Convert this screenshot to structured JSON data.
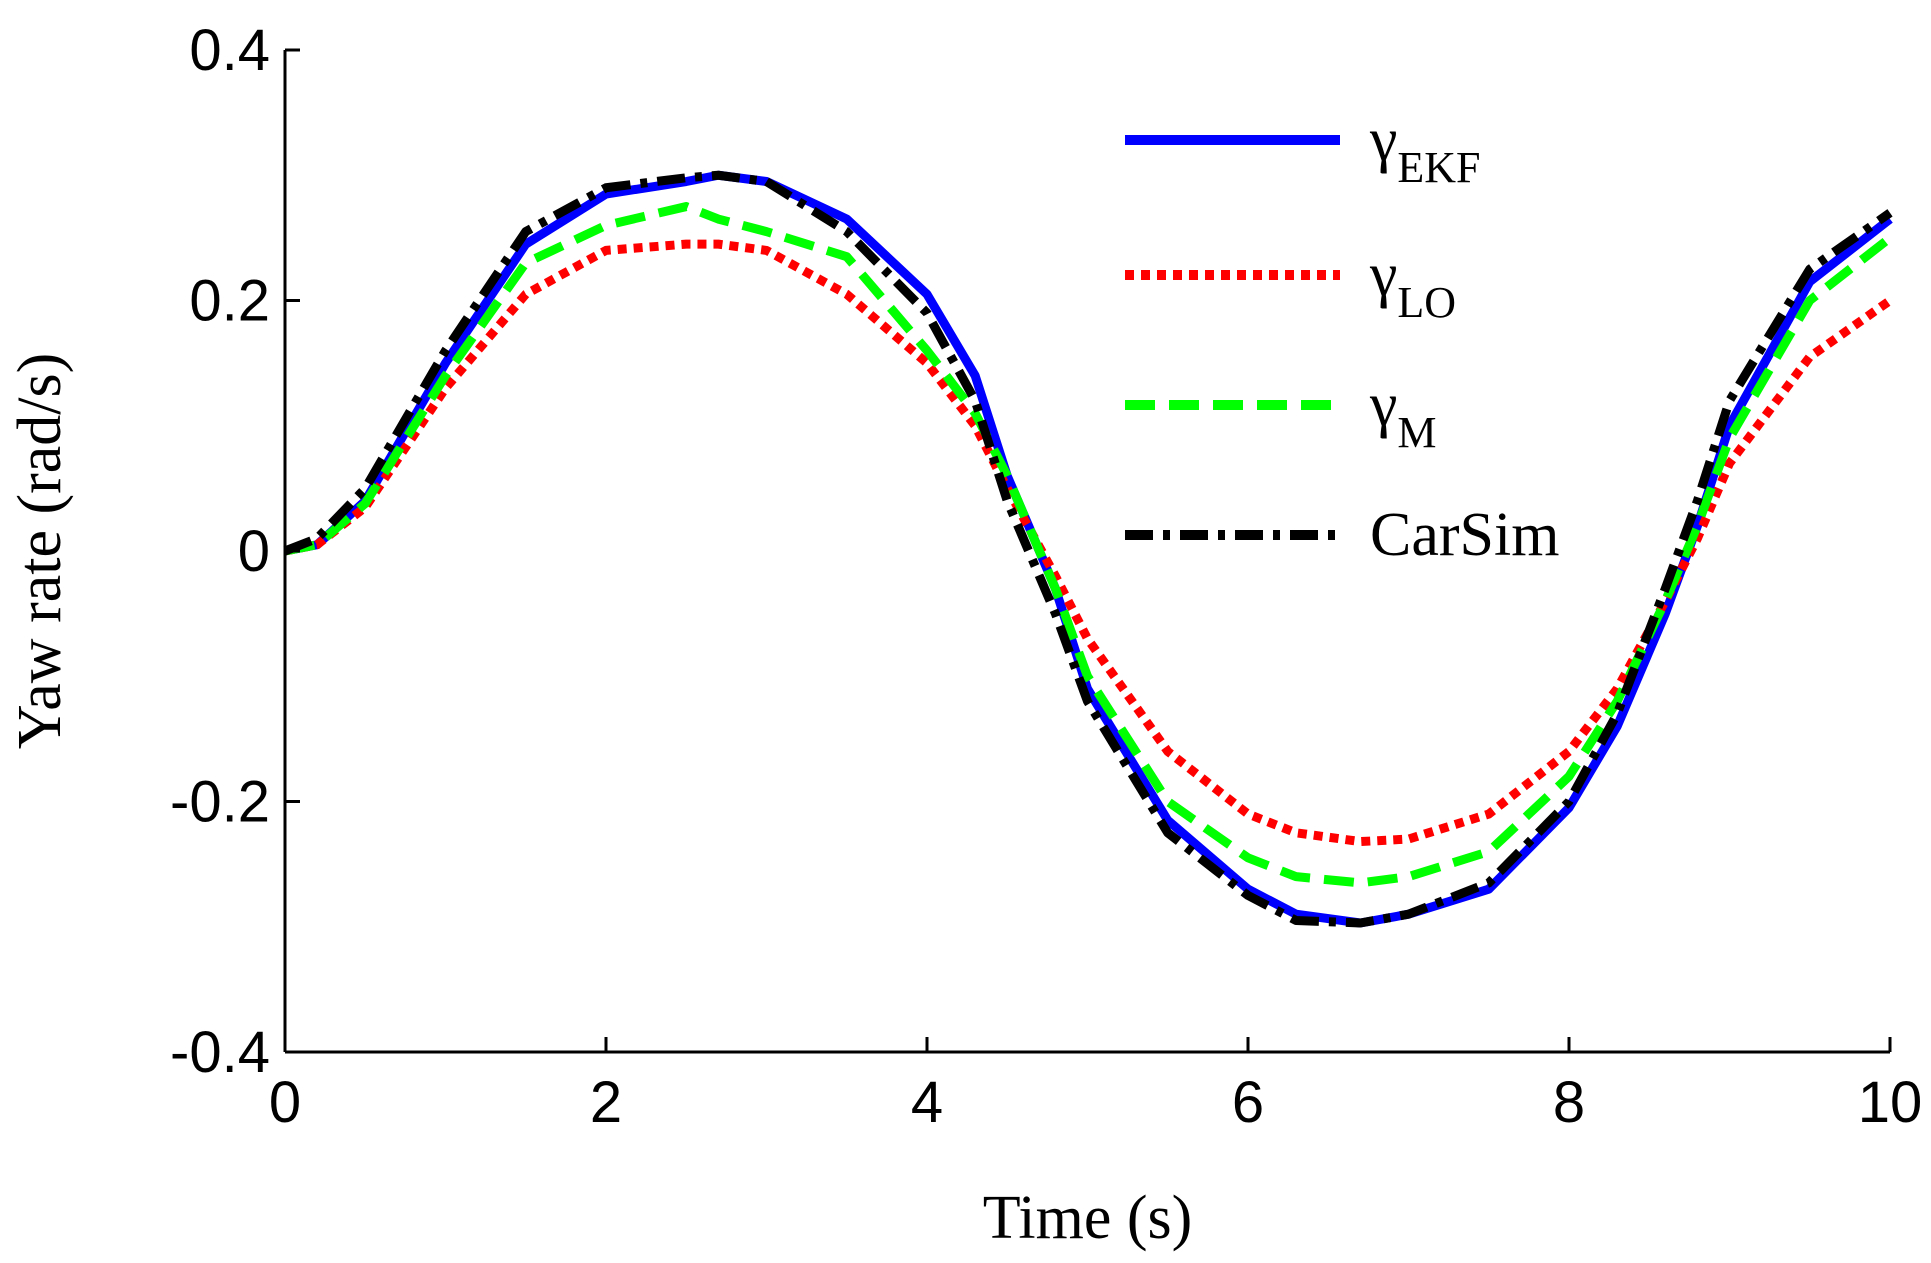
{
  "chart_data": {
    "type": "line",
    "title": "",
    "xlabel": "Time (s)",
    "ylabel": "Yaw rate (rad/s)",
    "xlim": [
      0,
      10
    ],
    "ylim": [
      -0.4,
      0.4
    ],
    "xticks": [
      0,
      2,
      4,
      6,
      8,
      10
    ],
    "xtick_labels": [
      "0",
      "2",
      "4",
      "6",
      "8",
      "10"
    ],
    "yticks": [
      -0.4,
      -0.2,
      0,
      0.2,
      0.4
    ],
    "ytick_labels": [
      "-0.4",
      "-0.2",
      "0",
      "0.2",
      "0.4"
    ],
    "grid": false,
    "legend_position": "top-right",
    "x": [
      0,
      0.2,
      0.5,
      1.0,
      1.5,
      2.0,
      2.5,
      2.7,
      3.0,
      3.5,
      4.0,
      4.3,
      4.5,
      4.8,
      5.0,
      5.5,
      6.0,
      6.3,
      6.7,
      7.0,
      7.5,
      8.0,
      8.3,
      8.6,
      8.8,
      9.0,
      9.5,
      10.0
    ],
    "series": [
      {
        "name": "EKF",
        "legend_base": "γ",
        "legend_sub": "EKF",
        "color": "#0000ff",
        "style": "solid",
        "values": [
          0,
          0.005,
          0.04,
          0.15,
          0.245,
          0.285,
          0.295,
          0.3,
          0.295,
          0.265,
          0.205,
          0.14,
          0.06,
          -0.03,
          -0.11,
          -0.215,
          -0.27,
          -0.29,
          -0.297,
          -0.29,
          -0.27,
          -0.205,
          -0.14,
          -0.05,
          0.02,
          0.1,
          0.215,
          0.265
        ]
      },
      {
        "name": "LO",
        "legend_base": "γ",
        "legend_sub": "LO",
        "color": "#ff0000",
        "style": "dotted",
        "values": [
          0,
          0.005,
          0.035,
          0.13,
          0.205,
          0.24,
          0.245,
          0.245,
          0.24,
          0.205,
          0.15,
          0.1,
          0.05,
          -0.02,
          -0.07,
          -0.16,
          -0.21,
          -0.225,
          -0.232,
          -0.23,
          -0.21,
          -0.16,
          -0.11,
          -0.04,
          0.01,
          0.07,
          0.155,
          0.2
        ]
      },
      {
        "name": "M",
        "legend_base": "γ",
        "legend_sub": "M",
        "color": "#00ff00",
        "style": "dashed",
        "values": [
          0,
          0.005,
          0.038,
          0.14,
          0.23,
          0.26,
          0.275,
          0.265,
          0.255,
          0.235,
          0.16,
          0.11,
          0.06,
          -0.03,
          -0.1,
          -0.2,
          -0.245,
          -0.26,
          -0.265,
          -0.26,
          -0.24,
          -0.18,
          -0.12,
          -0.04,
          0.02,
          0.09,
          0.2,
          0.25
        ]
      },
      {
        "name": "CarSim",
        "legend_base": "CarSim",
        "legend_sub": "",
        "color": "#000000",
        "style": "dashdot",
        "values": [
          0,
          0.01,
          0.05,
          0.16,
          0.255,
          0.29,
          0.298,
          0.3,
          0.295,
          0.255,
          0.19,
          0.12,
          0.04,
          -0.05,
          -0.12,
          -0.225,
          -0.275,
          -0.295,
          -0.297,
          -0.29,
          -0.265,
          -0.2,
          -0.13,
          -0.03,
          0.04,
          0.12,
          0.225,
          0.27
        ]
      }
    ]
  }
}
